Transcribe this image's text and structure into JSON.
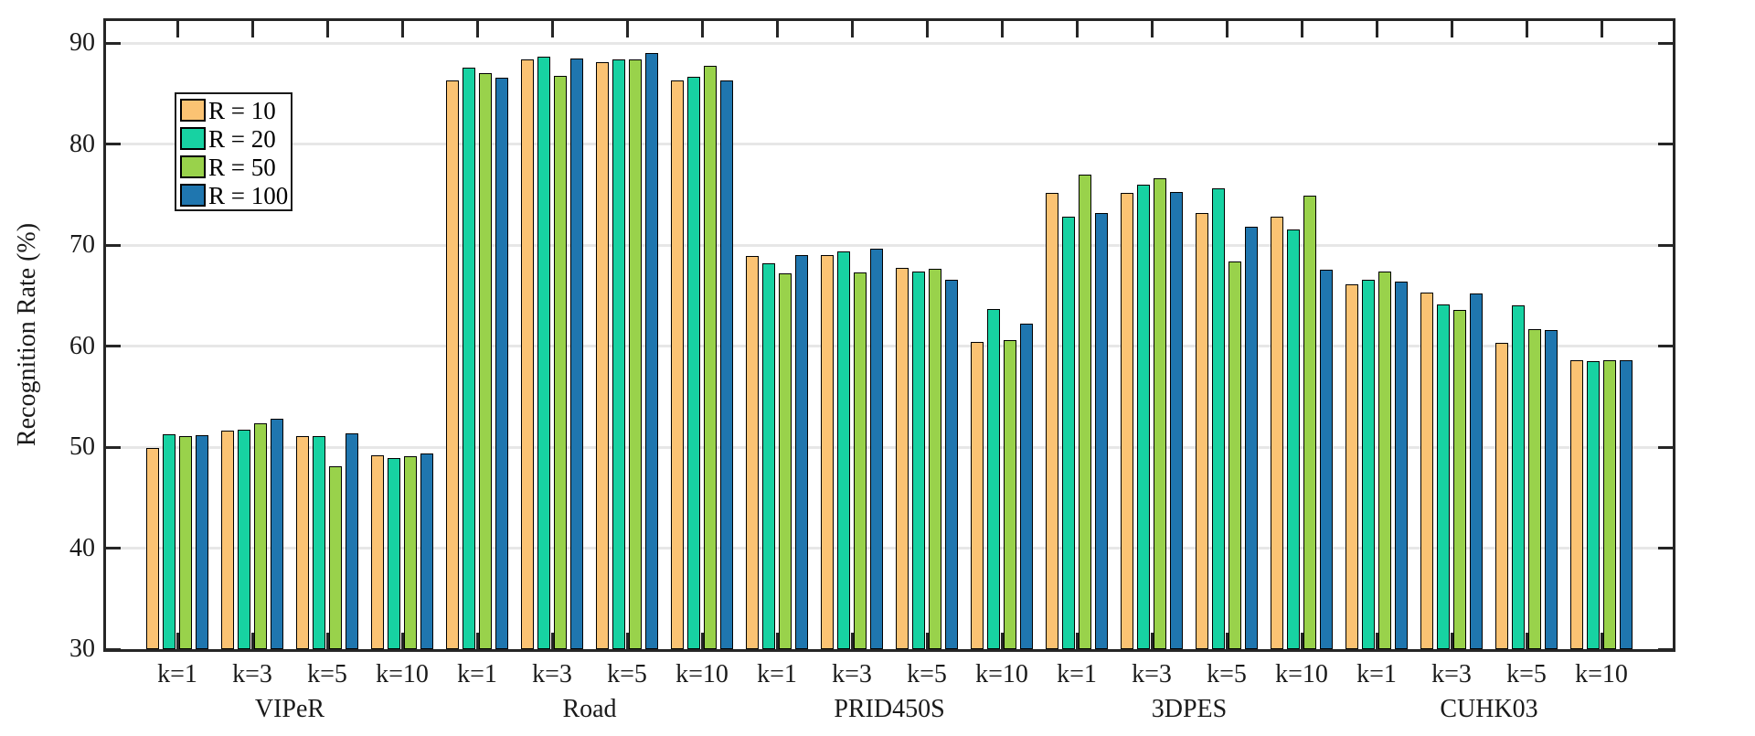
{
  "chart_data": {
    "type": "bar",
    "title": "",
    "ylabel": "Recognition Rate (%)",
    "ylim": [
      30,
      92.2
    ],
    "yticks": [
      30,
      40,
      50,
      60,
      70,
      80,
      90
    ],
    "grid": true,
    "legend_position": "top-left",
    "groups": [
      "VIPeR",
      "Road",
      "PRID450S",
      "3DPES",
      "CUHK03"
    ],
    "k_labels": [
      "k=1",
      "k=3",
      "k=5",
      "k=10"
    ],
    "series": [
      {
        "name": "R = 10",
        "color": "#FBC373",
        "values": [
          [
            49.9,
            51.6,
            51.1,
            49.2
          ],
          [
            86.3,
            88.4,
            88.1,
            86.3
          ],
          [
            68.9,
            69.0,
            67.8,
            60.4
          ],
          [
            75.2,
            75.2,
            73.2,
            72.8
          ],
          [
            66.1,
            65.3,
            60.3,
            58.6
          ]
        ]
      },
      {
        "name": "R = 20",
        "color": "#17D2A2",
        "values": [
          [
            51.3,
            51.7,
            51.1,
            48.9
          ],
          [
            87.6,
            88.7,
            88.4,
            86.7
          ],
          [
            68.2,
            69.4,
            67.4,
            63.7
          ],
          [
            72.8,
            76.0,
            75.6,
            71.6
          ],
          [
            66.6,
            64.1,
            64.0,
            58.5
          ]
        ]
      },
      {
        "name": "R = 50",
        "color": "#99D24B",
        "values": [
          [
            51.1,
            52.4,
            48.1,
            49.1
          ],
          [
            87.0,
            86.8,
            88.4,
            87.8
          ],
          [
            67.2,
            67.3,
            67.7,
            60.6
          ],
          [
            77.0,
            76.6,
            68.4,
            74.9
          ],
          [
            67.4,
            63.6,
            61.7,
            58.6
          ]
        ]
      },
      {
        "name": "R = 100",
        "color": "#1F76AF",
        "values": [
          [
            51.2,
            52.8,
            51.4,
            49.4
          ],
          [
            86.6,
            88.5,
            89.0,
            86.3
          ],
          [
            69.0,
            69.7,
            66.6,
            62.2
          ],
          [
            73.2,
            75.3,
            71.8,
            67.6
          ],
          [
            66.4,
            65.2,
            61.6,
            58.6
          ]
        ]
      }
    ]
  }
}
